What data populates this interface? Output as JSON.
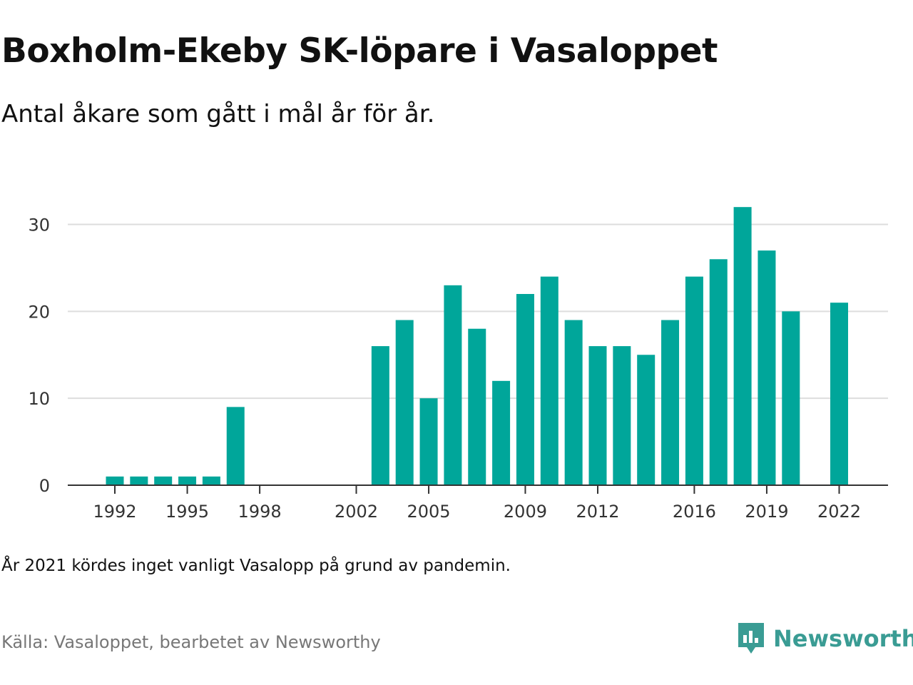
{
  "title": "Boxholm-Ekeby SK-löpare i Vasaloppet",
  "subtitle": "Antal åkare som gått i mål år för år.",
  "note": "År 2021 kördes inget vanligt Vasalopp på grund av pandemin.",
  "source": "Källa: Vasaloppet, bearbetet av Newsworthy",
  "brand": {
    "name": "Newsworthy",
    "icon": "newsworthy-logo-icon"
  },
  "colors": {
    "bar": "#00a69a",
    "brand": "#3a9c94",
    "grid": "#dddddd",
    "axis": "#333333"
  },
  "chart_data": {
    "type": "bar",
    "title": "Boxholm-Ekeby SK-löpare i Vasaloppet",
    "xlabel": "",
    "ylabel": "",
    "ylim": [
      0,
      33
    ],
    "grid": true,
    "categories": [
      1992,
      1993,
      1994,
      1995,
      1996,
      1997,
      2003,
      2004,
      2005,
      2006,
      2007,
      2008,
      2009,
      2010,
      2011,
      2012,
      2013,
      2014,
      2015,
      2016,
      2017,
      2018,
      2019,
      2020,
      2022
    ],
    "values": [
      1,
      1,
      1,
      1,
      1,
      9,
      16,
      19,
      10,
      23,
      18,
      12,
      22,
      24,
      19,
      16,
      16,
      15,
      19,
      24,
      26,
      32,
      27,
      20,
      21
    ],
    "x_ticks": [
      1992,
      1995,
      1998,
      2002,
      2005,
      2009,
      2012,
      2016,
      2019,
      2022
    ],
    "y_ticks": [
      0,
      10,
      20,
      30
    ]
  }
}
